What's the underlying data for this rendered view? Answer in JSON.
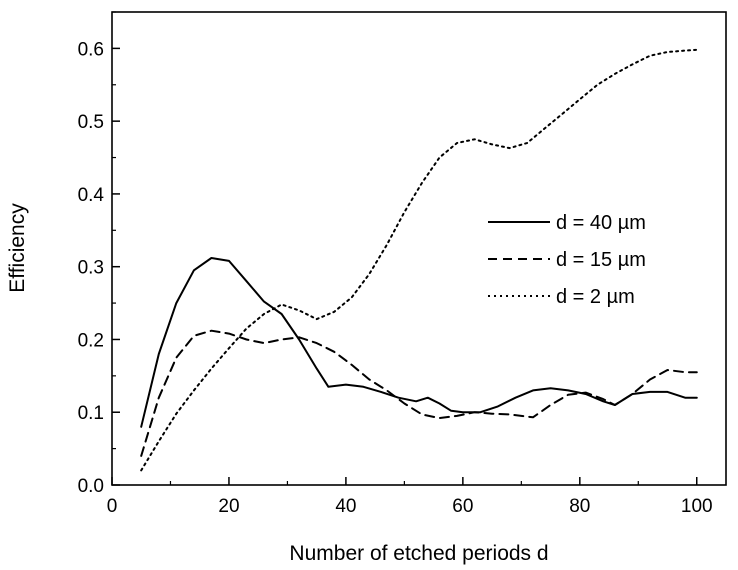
{
  "chart_data": {
    "type": "line",
    "title": "",
    "xlabel": "Number of etched periods d",
    "ylabel": "Efficiency",
    "xlim": [
      0,
      105
    ],
    "ylim": [
      0.0,
      0.65
    ],
    "xticks": [
      0,
      20,
      40,
      60,
      80,
      100
    ],
    "xtick_labels": [
      "0",
      "20",
      "40",
      "60",
      "80",
      "100"
    ],
    "yticks": [
      0.0,
      0.1,
      0.2,
      0.3,
      0.4,
      0.5,
      0.6
    ],
    "ytick_labels": [
      "0.0",
      "0.1",
      "0.2",
      "0.3",
      "0.4",
      "0.5",
      "0.6"
    ],
    "grid": false,
    "legend_position": "right-center",
    "series": [
      {
        "name": "d = 40 µm",
        "style": "solid",
        "color": "#000000",
        "x": [
          5,
          8,
          11,
          14,
          17,
          20,
          23,
          26,
          29,
          32,
          35,
          37,
          40,
          43,
          46,
          49,
          52,
          54,
          56,
          58,
          60,
          63,
          66,
          69,
          72,
          75,
          78,
          81,
          84,
          86,
          89,
          92,
          95,
          98,
          100
        ],
        "y": [
          0.08,
          0.18,
          0.25,
          0.295,
          0.312,
          0.308,
          0.28,
          0.252,
          0.235,
          0.2,
          0.16,
          0.135,
          0.138,
          0.135,
          0.128,
          0.12,
          0.115,
          0.12,
          0.112,
          0.102,
          0.1,
          0.1,
          0.108,
          0.12,
          0.13,
          0.133,
          0.13,
          0.125,
          0.115,
          0.11,
          0.125,
          0.128,
          0.128,
          0.12,
          0.12
        ]
      },
      {
        "name": "d = 15 µm",
        "style": "dashed",
        "color": "#000000",
        "x": [
          5,
          8,
          11,
          14,
          17,
          20,
          23,
          26,
          29,
          32,
          35,
          38,
          41,
          44,
          47,
          50,
          53,
          56,
          59,
          62,
          65,
          68,
          72,
          75,
          78,
          81,
          84,
          86,
          89,
          92,
          95,
          98,
          100
        ],
        "y": [
          0.04,
          0.12,
          0.175,
          0.205,
          0.212,
          0.208,
          0.2,
          0.195,
          0.2,
          0.203,
          0.195,
          0.183,
          0.165,
          0.145,
          0.13,
          0.112,
          0.097,
          0.092,
          0.095,
          0.1,
          0.098,
          0.097,
          0.093,
          0.11,
          0.124,
          0.127,
          0.118,
          0.11,
          0.125,
          0.145,
          0.158,
          0.155,
          0.155
        ]
      },
      {
        "name": "d = 2 µm",
        "style": "dotted",
        "color": "#000000",
        "x": [
          5,
          8,
          11,
          14,
          17,
          20,
          23,
          26,
          29,
          32,
          35,
          38,
          41,
          44,
          47,
          50,
          53,
          56,
          59,
          62,
          65,
          68,
          71,
          74,
          77,
          80,
          83,
          86,
          89,
          92,
          95,
          98,
          100
        ],
        "y": [
          0.02,
          0.06,
          0.098,
          0.13,
          0.16,
          0.188,
          0.215,
          0.235,
          0.248,
          0.24,
          0.228,
          0.238,
          0.258,
          0.29,
          0.33,
          0.375,
          0.415,
          0.45,
          0.47,
          0.475,
          0.468,
          0.463,
          0.47,
          0.49,
          0.51,
          0.53,
          0.55,
          0.565,
          0.578,
          0.59,
          0.595,
          0.597,
          0.598
        ]
      }
    ]
  }
}
